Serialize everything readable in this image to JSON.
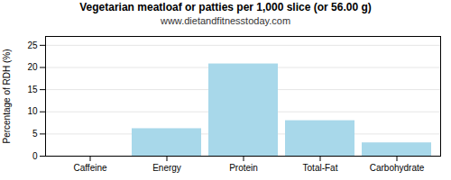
{
  "chart_data": {
    "type": "bar",
    "title": "Vegetarian meatloaf or patties per 1,000 slice (or 56.00 g)",
    "subtitle": "www.dietandfitnesstoday.com",
    "categories": [
      "Caffeine",
      "Energy",
      "Protein",
      "Total-Fat",
      "Carbohydrate"
    ],
    "values": [
      0,
      6.2,
      20.8,
      8.0,
      3.0
    ],
    "color": "#a8d8ea",
    "ylabel": "Percentage of RDH (%)",
    "ylim": [
      0,
      27
    ],
    "yticks": [
      0,
      5,
      10,
      15,
      20,
      25
    ],
    "grid": true
  }
}
